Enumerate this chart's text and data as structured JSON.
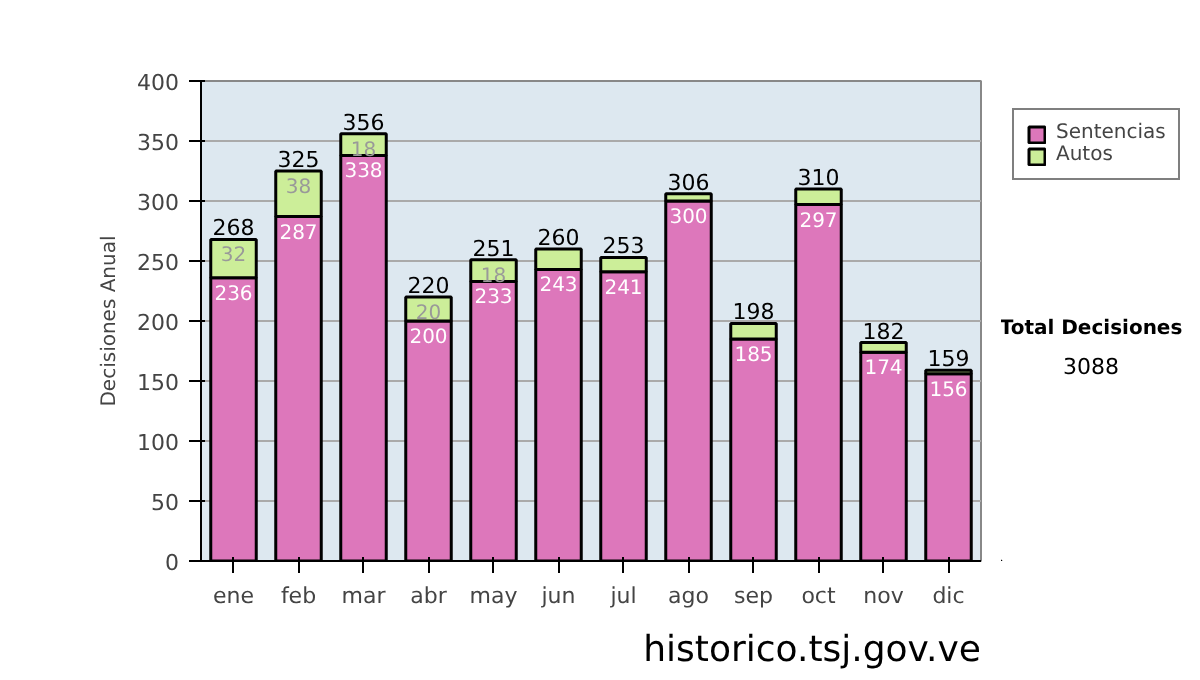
{
  "chart_data": {
    "type": "bar",
    "stacked": true,
    "ylabel": "Decisiones Anual",
    "categories": [
      "ene",
      "feb",
      "mar",
      "abr",
      "may",
      "jun",
      "jul",
      "ago",
      "sep",
      "oct",
      "nov",
      "dic"
    ],
    "series": [
      {
        "name": "Sentencias",
        "color": "#dd77bb",
        "values": [
          236,
          287,
          338,
          200,
          233,
          243,
          241,
          300,
          185,
          297,
          174,
          156
        ],
        "value_labels": [
          "236",
          "287",
          "338",
          "200",
          "233",
          "243",
          "241",
          "300",
          "185",
          "297",
          "174",
          "156"
        ]
      },
      {
        "name": "Autos",
        "color": "#ccee99",
        "values": [
          32,
          38,
          18,
          20,
          18,
          17,
          12,
          6,
          13,
          13,
          8,
          3
        ],
        "value_labels": [
          "32",
          "38",
          "18",
          "20",
          "18",
          null,
          null,
          null,
          null,
          null,
          null,
          null
        ]
      }
    ],
    "totals": [
      "268",
      "325",
      "356",
      "220",
      "251",
      "260",
      "253",
      "306",
      "198",
      "310",
      "182",
      "159"
    ],
    "ylim": [
      0,
      400
    ],
    "yticks": [
      0,
      50,
      100,
      150,
      200,
      250,
      300,
      350,
      400
    ],
    "grid": "y",
    "legend": "right",
    "annotations": [
      "Total Decisiones",
      "3088",
      "historico.tsj.gov.ve"
    ]
  }
}
